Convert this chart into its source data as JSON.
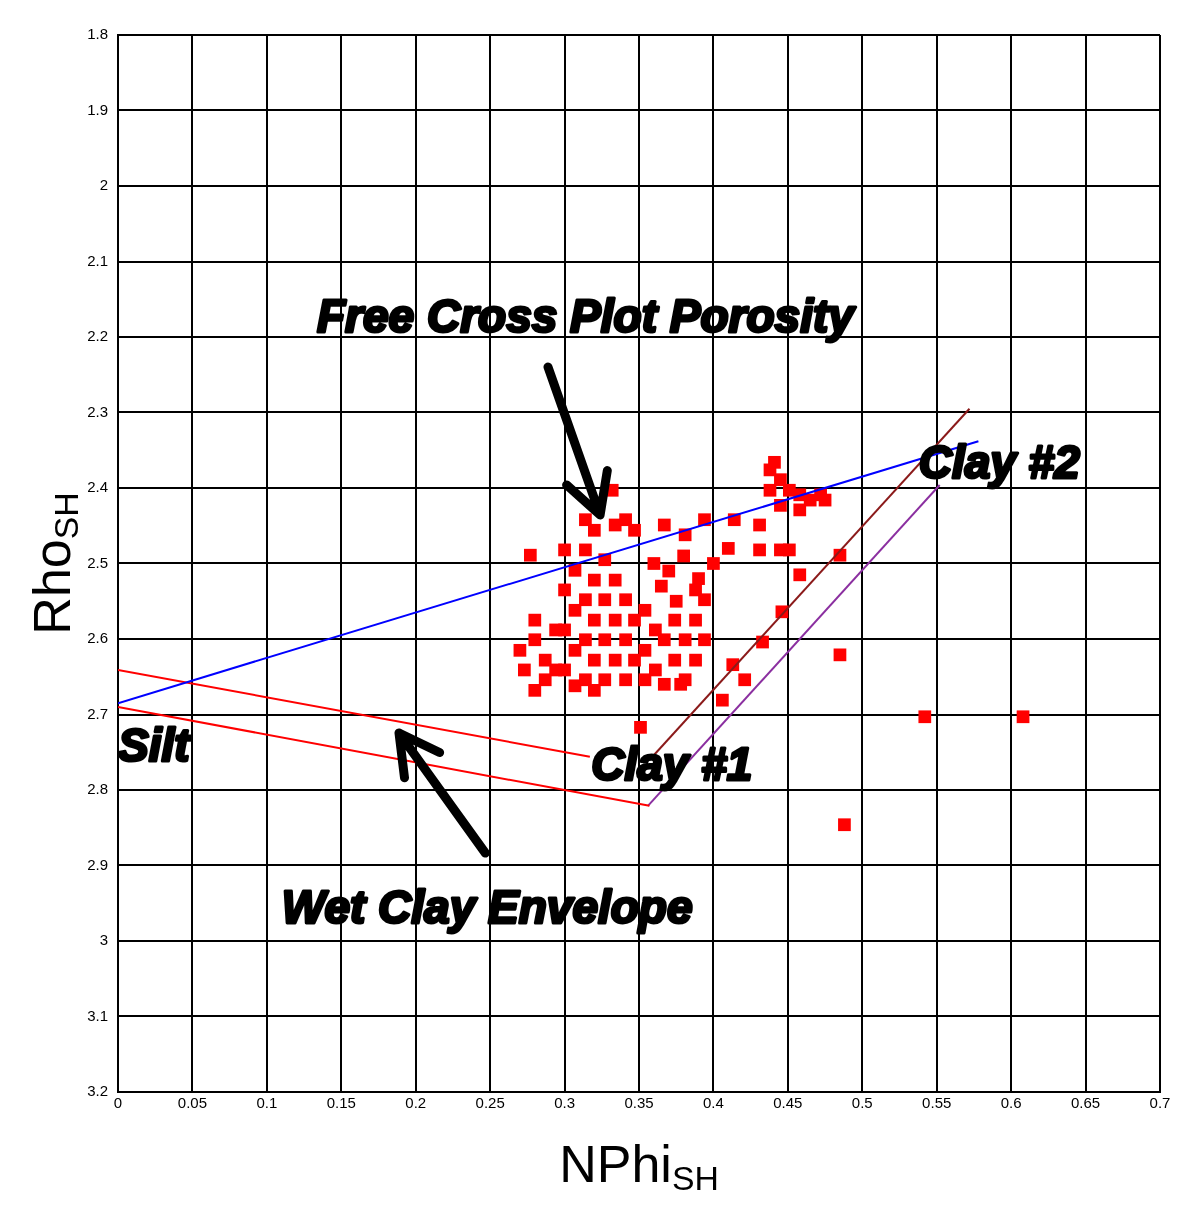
{
  "chart_data": {
    "type": "scatter",
    "xlabel": "NPhi$_{SH}$",
    "ylabel": "Rho$_{SH}$",
    "xlim": [
      0,
      0.7
    ],
    "xticks": [
      0,
      0.05,
      0.1,
      0.15,
      0.2,
      0.25,
      0.3,
      0.35,
      0.4,
      0.45,
      0.5,
      0.55,
      0.6,
      0.65,
      0.7
    ],
    "ylim": [
      3.2,
      1.8
    ],
    "yticks": [
      1.8,
      1.9,
      2,
      2.1,
      2.2,
      2.3,
      2.4,
      2.5,
      2.6,
      2.7,
      2.8,
      2.9,
      3,
      3.1,
      3.2
    ],
    "grid": true,
    "legend": false,
    "series": [
      {
        "color": "#ff0000",
        "marker": "square",
        "x": [
          0.438,
          0.441,
          0.445,
          0.451,
          0.458,
          0.465,
          0.472,
          0.458,
          0.445,
          0.475,
          0.438,
          0.277,
          0.332,
          0.314,
          0.32,
          0.334,
          0.341,
          0.347,
          0.367,
          0.381,
          0.394,
          0.414,
          0.431,
          0.445,
          0.431,
          0.451,
          0.458,
          0.485,
          0.446,
          0.433,
          0.413,
          0.421,
          0.406,
          0.351,
          0.485,
          0.488,
          0.542,
          0.608,
          0.36,
          0.37,
          0.38,
          0.4,
          0.41,
          0.39,
          0.375,
          0.365,
          0.27,
          0.273,
          0.28,
          0.28,
          0.287,
          0.287,
          0.294,
          0.294,
          0.28,
          0.3,
          0.3,
          0.3,
          0.3,
          0.307,
          0.307,
          0.307,
          0.307,
          0.314,
          0.314,
          0.314,
          0.314,
          0.32,
          0.32,
          0.32,
          0.32,
          0.327,
          0.327,
          0.327,
          0.327,
          0.334,
          0.334,
          0.334,
          0.341,
          0.341,
          0.341,
          0.347,
          0.347,
          0.354,
          0.354,
          0.354,
          0.361,
          0.361,
          0.367,
          0.374,
          0.374,
          0.381,
          0.381,
          0.388,
          0.388,
          0.394,
          0.394,
          0.388,
          0.367,
          0.378
        ],
        "values": [
          2.376,
          2.366,
          2.389,
          2.403,
          2.409,
          2.416,
          2.409,
          2.429,
          2.423,
          2.416,
          2.403,
          2.489,
          2.403,
          2.442,
          2.456,
          2.449,
          2.442,
          2.456,
          2.449,
          2.462,
          2.442,
          2.442,
          2.449,
          2.482,
          2.482,
          2.482,
          2.515,
          2.489,
          2.564,
          2.604,
          2.634,
          2.654,
          2.681,
          2.717,
          2.621,
          2.846,
          2.703,
          2.703,
          2.5,
          2.51,
          2.49,
          2.5,
          2.48,
          2.52,
          2.55,
          2.53,
          2.615,
          2.641,
          2.668,
          2.601,
          2.628,
          2.654,
          2.588,
          2.641,
          2.575,
          2.482,
          2.535,
          2.588,
          2.641,
          2.509,
          2.562,
          2.615,
          2.662,
          2.482,
          2.548,
          2.601,
          2.654,
          2.522,
          2.575,
          2.628,
          2.668,
          2.495,
          2.548,
          2.601,
          2.654,
          2.522,
          2.575,
          2.628,
          2.548,
          2.601,
          2.654,
          2.575,
          2.628,
          2.562,
          2.615,
          2.654,
          2.588,
          2.641,
          2.601,
          2.575,
          2.628,
          2.601,
          2.654,
          2.575,
          2.628,
          2.601,
          2.548,
          2.535,
          2.66,
          2.66
        ]
      },
      {
        "type": "line",
        "color": "#0000ff",
        "x": [
          0,
          0.578
        ],
        "values": [
          2.685,
          2.338
        ]
      },
      {
        "type": "line",
        "color": "#ff0000",
        "x": [
          0,
          0.317
        ],
        "values": [
          2.641,
          2.756
        ]
      },
      {
        "type": "line",
        "color": "#ff0000",
        "x": [
          0,
          0.357
        ],
        "values": [
          2.69,
          2.821
        ]
      },
      {
        "type": "line",
        "color": "#8b1a1a",
        "x": [
          0.359,
          0.572
        ],
        "values": [
          2.756,
          2.295
        ]
      },
      {
        "type": "line",
        "color": "#8b2fa0",
        "x": [
          0.356,
          0.552
        ],
        "values": [
          2.821,
          2.396
        ]
      }
    ],
    "annotations": [
      "Free Cross Plot Porosity",
      "Clay #2",
      "Silt",
      "Clay #1",
      "Wet Clay Envelope"
    ]
  }
}
